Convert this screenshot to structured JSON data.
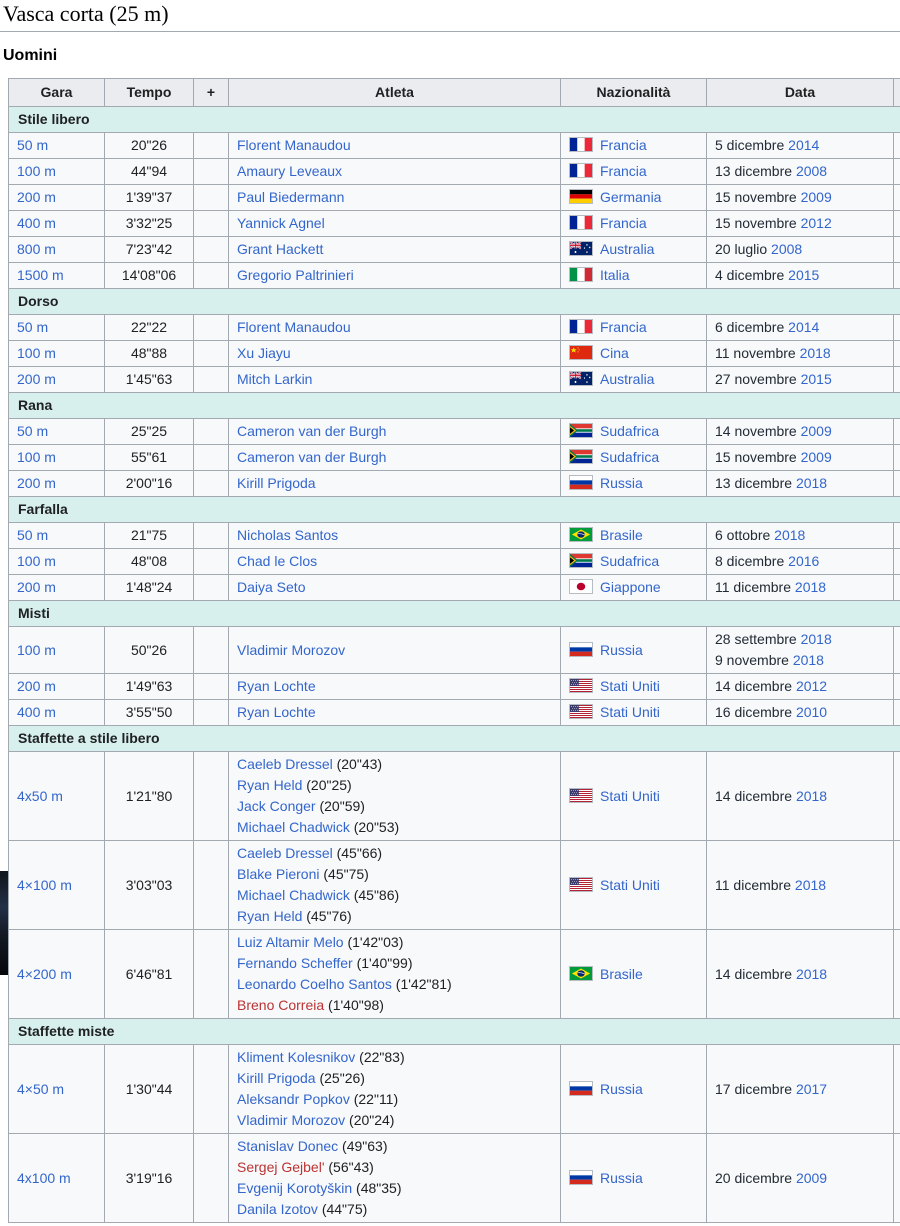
{
  "page": {
    "title": "Vasca corta (25 m)",
    "subtitle": "Uomini"
  },
  "colors": {
    "section_bg": "#d7f0ee",
    "header_bg": "#eaecf0",
    "row_bg": "#f8f9fa",
    "border": "#a2a9b1",
    "link": "#3366cc",
    "red_link": "#bb3333"
  },
  "table": {
    "headers": [
      "Gara",
      "Tempo",
      "+",
      "Atleta",
      "Nazionalità",
      "Data"
    ],
    "sections": [
      {
        "label": "Stile libero",
        "rows": [
          {
            "gara": "50 m",
            "tempo": "20\"26",
            "athletes": [
              {
                "name": "Florent Manaudou"
              }
            ],
            "nation": {
              "flag": "francia",
              "label": "Francia"
            },
            "dates": [
              {
                "dm": "5 dicembre",
                "year": "2014"
              }
            ]
          },
          {
            "gara": "100 m",
            "tempo": "44\"94",
            "athletes": [
              {
                "name": "Amaury Leveaux"
              }
            ],
            "nation": {
              "flag": "francia",
              "label": "Francia"
            },
            "dates": [
              {
                "dm": "13 dicembre",
                "year": "2008"
              }
            ]
          },
          {
            "gara": "200 m",
            "tempo": "1'39\"37",
            "athletes": [
              {
                "name": "Paul Biedermann"
              }
            ],
            "nation": {
              "flag": "germania",
              "label": "Germania"
            },
            "dates": [
              {
                "dm": "15 novembre",
                "year": "2009"
              }
            ]
          },
          {
            "gara": "400 m",
            "tempo": "3'32\"25",
            "athletes": [
              {
                "name": "Yannick Agnel"
              }
            ],
            "nation": {
              "flag": "francia",
              "label": "Francia"
            },
            "dates": [
              {
                "dm": "15 novembre",
                "year": "2012"
              }
            ]
          },
          {
            "gara": "800 m",
            "tempo": "7'23\"42",
            "athletes": [
              {
                "name": "Grant Hackett"
              }
            ],
            "nation": {
              "flag": "australia",
              "label": "Australia"
            },
            "dates": [
              {
                "dm": "20 luglio",
                "year": "2008"
              }
            ]
          },
          {
            "gara": "1500 m",
            "tempo": "14'08\"06",
            "athletes": [
              {
                "name": "Gregorio Paltrinieri"
              }
            ],
            "nation": {
              "flag": "italia",
              "label": "Italia"
            },
            "dates": [
              {
                "dm": "4 dicembre",
                "year": "2015"
              }
            ]
          }
        ]
      },
      {
        "label": "Dorso",
        "rows": [
          {
            "gara": "50 m",
            "tempo": "22\"22",
            "athletes": [
              {
                "name": "Florent Manaudou"
              }
            ],
            "nation": {
              "flag": "francia",
              "label": "Francia"
            },
            "dates": [
              {
                "dm": "6 dicembre",
                "year": "2014"
              }
            ]
          },
          {
            "gara": "100 m",
            "tempo": "48\"88",
            "athletes": [
              {
                "name": "Xu Jiayu"
              }
            ],
            "nation": {
              "flag": "cina",
              "label": "Cina"
            },
            "dates": [
              {
                "dm": "11 novembre",
                "year": "2018"
              }
            ]
          },
          {
            "gara": "200 m",
            "tempo": "1'45\"63",
            "athletes": [
              {
                "name": "Mitch Larkin"
              }
            ],
            "nation": {
              "flag": "australia",
              "label": "Australia"
            },
            "dates": [
              {
                "dm": "27 novembre",
                "year": "2015"
              }
            ]
          }
        ]
      },
      {
        "label": "Rana",
        "rows": [
          {
            "gara": "50 m",
            "tempo": "25\"25",
            "athletes": [
              {
                "name": "Cameron van der Burgh"
              }
            ],
            "nation": {
              "flag": "sudafrica",
              "label": "Sudafrica"
            },
            "dates": [
              {
                "dm": "14 novembre",
                "year": "2009"
              }
            ]
          },
          {
            "gara": "100 m",
            "tempo": "55\"61",
            "athletes": [
              {
                "name": "Cameron van der Burgh"
              }
            ],
            "nation": {
              "flag": "sudafrica",
              "label": "Sudafrica"
            },
            "dates": [
              {
                "dm": "15 novembre",
                "year": "2009"
              }
            ]
          },
          {
            "gara": "200 m",
            "tempo": "2'00\"16",
            "athletes": [
              {
                "name": "Kirill Prigoda"
              }
            ],
            "nation": {
              "flag": "russia",
              "label": "Russia"
            },
            "dates": [
              {
                "dm": "13 dicembre",
                "year": "2018"
              }
            ]
          }
        ]
      },
      {
        "label": "Farfalla",
        "rows": [
          {
            "gara": "50 m",
            "tempo": "21\"75",
            "athletes": [
              {
                "name": "Nicholas Santos"
              }
            ],
            "nation": {
              "flag": "brasile",
              "label": "Brasile"
            },
            "dates": [
              {
                "dm": "6 ottobre",
                "year": "2018"
              }
            ]
          },
          {
            "gara": "100 m",
            "tempo": "48\"08",
            "athletes": [
              {
                "name": "Chad le Clos"
              }
            ],
            "nation": {
              "flag": "sudafrica",
              "label": "Sudafrica"
            },
            "dates": [
              {
                "dm": "8 dicembre",
                "year": "2016"
              }
            ]
          },
          {
            "gara": "200 m",
            "tempo": "1'48\"24",
            "athletes": [
              {
                "name": "Daiya Seto"
              }
            ],
            "nation": {
              "flag": "giappone",
              "label": "Giappone"
            },
            "dates": [
              {
                "dm": "11 dicembre",
                "year": "2018"
              }
            ]
          }
        ]
      },
      {
        "label": "Misti",
        "rows": [
          {
            "gara": "100 m",
            "tempo": "50\"26",
            "athletes": [
              {
                "name": "Vladimir Morozov"
              }
            ],
            "nation": {
              "flag": "russia",
              "label": "Russia"
            },
            "dates": [
              {
                "dm": "28 settembre",
                "year": "2018"
              },
              {
                "dm": "9 novembre",
                "year": "2018"
              }
            ]
          },
          {
            "gara": "200 m",
            "tempo": "1'49\"63",
            "athletes": [
              {
                "name": "Ryan Lochte"
              }
            ],
            "nation": {
              "flag": "stati-uniti",
              "label": "Stati Uniti"
            },
            "dates": [
              {
                "dm": "14 dicembre",
                "year": "2012"
              }
            ]
          },
          {
            "gara": "400 m",
            "tempo": "3'55\"50",
            "athletes": [
              {
                "name": "Ryan Lochte"
              }
            ],
            "nation": {
              "flag": "stati-uniti",
              "label": "Stati Uniti"
            },
            "dates": [
              {
                "dm": "16 dicembre",
                "year": "2010"
              }
            ]
          }
        ]
      },
      {
        "label": "Staffette a stile libero",
        "rows": [
          {
            "gara": "4x50 m",
            "tempo": "1'21\"80",
            "athletes": [
              {
                "name": "Caeleb Dressel",
                "split": "(20\"43)"
              },
              {
                "name": "Ryan Held",
                "split": "(20\"25)"
              },
              {
                "name": "Jack Conger",
                "split": "(20\"59)"
              },
              {
                "name": "Michael Chadwick",
                "split": "(20\"53)"
              }
            ],
            "nation": {
              "flag": "stati-uniti",
              "label": "Stati Uniti"
            },
            "dates": [
              {
                "dm": "14 dicembre",
                "year": "2018"
              }
            ]
          },
          {
            "gara": "4×100 m",
            "tempo": "3'03\"03",
            "athletes": [
              {
                "name": "Caeleb Dressel",
                "split": "(45\"66)"
              },
              {
                "name": "Blake Pieroni",
                "split": "(45\"75)"
              },
              {
                "name": "Michael Chadwick",
                "split": "(45\"86)"
              },
              {
                "name": "Ryan Held",
                "split": "(45\"76)"
              }
            ],
            "nation": {
              "flag": "stati-uniti",
              "label": "Stati Uniti"
            },
            "dates": [
              {
                "dm": "11 dicembre",
                "year": "2018"
              }
            ]
          },
          {
            "gara": "4×200 m",
            "tempo": "6'46\"81",
            "athletes": [
              {
                "name": "Luiz Altamir Melo",
                "split": "(1'42\"03)"
              },
              {
                "name": "Fernando Scheffer",
                "split": "(1'40\"99)"
              },
              {
                "name": "Leonardo Coelho Santos",
                "split": "(1'42\"81)"
              },
              {
                "name": "Breno Correia",
                "split": "(1'40\"98)",
                "red": true
              }
            ],
            "nation": {
              "flag": "brasile",
              "label": "Brasile"
            },
            "dates": [
              {
                "dm": "14 dicembre",
                "year": "2018"
              }
            ]
          }
        ]
      },
      {
        "label": "Staffette miste",
        "rows": [
          {
            "gara": "4×50 m",
            "tempo": "1'30\"44",
            "athletes": [
              {
                "name": "Kliment Kolesnikov",
                "split": "(22\"83)"
              },
              {
                "name": "Kirill Prigoda",
                "split": "(25\"26)"
              },
              {
                "name": "Aleksandr Popkov",
                "split": "(22\"11)"
              },
              {
                "name": "Vladimir Morozov",
                "split": "(20\"24)"
              }
            ],
            "nation": {
              "flag": "russia",
              "label": "Russia"
            },
            "dates": [
              {
                "dm": "17 dicembre",
                "year": "2017"
              }
            ]
          },
          {
            "gara": "4x100 m",
            "tempo": "3'19\"16",
            "athletes": [
              {
                "name": "Stanislav Donec",
                "split": "(49\"63)"
              },
              {
                "name": "Sergej Gejbel'",
                "split": "(56\"43)",
                "red": true
              },
              {
                "name": "Evgenij Korotyškin",
                "split": "(48\"35)"
              },
              {
                "name": "Danila Izotov",
                "split": "(44\"75)"
              }
            ],
            "nation": {
              "flag": "russia",
              "label": "Russia"
            },
            "dates": [
              {
                "dm": "20 dicembre",
                "year": "2009"
              }
            ]
          }
        ]
      }
    ]
  }
}
